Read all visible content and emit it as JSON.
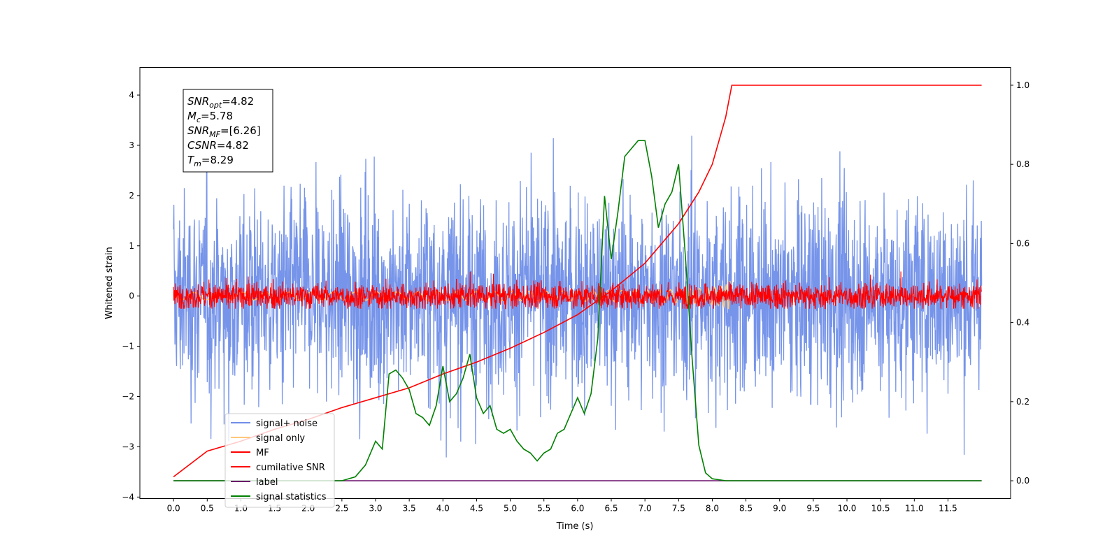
{
  "chart_data": {
    "type": "line",
    "xlabel": "Time (s)",
    "ylabel": "Whitened strain",
    "xlim": [
      -0.5,
      12.43
    ],
    "ylim": [
      -4.03,
      4.55
    ],
    "y2lim": [
      -0.045,
      1.045
    ],
    "x_ticks": [
      "0.0",
      "0.5",
      "1.0",
      "1.5",
      "2.0",
      "2.5",
      "3.0",
      "3.5",
      "4.0",
      "4.5",
      "5.0",
      "5.5",
      "6.0",
      "6.5",
      "7.0",
      "7.5",
      "8.0",
      "8.5",
      "9.0",
      "9.5",
      "10.0",
      "10.5",
      "11.0",
      "11.5"
    ],
    "y_ticks": [
      "−4",
      "−3",
      "−2",
      "−1",
      "0",
      "1",
      "2",
      "3",
      "4"
    ],
    "y2_ticks": [
      "0.0",
      "0.2",
      "0.4",
      "0.6",
      "0.8",
      "1.0"
    ],
    "grid": false,
    "legend_position": "lower-left",
    "textbox": [
      "SNRopt=4.82",
      "Mc=5.78",
      "SNRMF=[6.26]",
      "CSNR=4.82",
      "Tm=8.29"
    ],
    "textbox_parts": [
      {
        "sym": "SNR",
        "sub": "opt",
        "val": "=4.82"
      },
      {
        "sym": "M",
        "sub": "c",
        "val": "=5.78"
      },
      {
        "sym": "SNR",
        "sub": "MF",
        "val": "=[6.26]"
      },
      {
        "sym": "CSNR",
        "sub": "",
        "val": "=4.82"
      },
      {
        "sym": "T",
        "sub": "m",
        "val": "=8.29"
      }
    ],
    "series": [
      {
        "name": "signal+ noise",
        "color": "#6f8ee8",
        "kind": "noise",
        "axis": "left",
        "x_range": [
          0,
          12
        ],
        "mean": 0,
        "std": 1,
        "min": -3.5,
        "max": 4.15
      },
      {
        "name": "signal only",
        "color": "#ffc87a",
        "kind": "chirp",
        "axis": "left",
        "x_range": [
          0,
          8.29
        ],
        "peak_time": 8.29,
        "peak_amplitude": 0.55
      },
      {
        "name": "MF",
        "color": "#ff0000",
        "kind": "noise",
        "axis": "left",
        "x_range": [
          0,
          12
        ],
        "mean": 0,
        "std": 0.13,
        "min": -0.25,
        "max": 0.55
      },
      {
        "name": "cumilative SNR",
        "color": "#ff0000",
        "kind": "curve",
        "axis": "right",
        "x": [
          0,
          0.5,
          1,
          1.5,
          2,
          2.5,
          3,
          3.5,
          4,
          4.5,
          5,
          5.5,
          6,
          6.5,
          7,
          7.5,
          7.8,
          8.0,
          8.1,
          8.2,
          8.29,
          8.3,
          9,
          10,
          11,
          12
        ],
        "values": [
          0.01,
          0.075,
          0.1,
          0.13,
          0.155,
          0.185,
          0.21,
          0.235,
          0.27,
          0.3,
          0.335,
          0.375,
          0.42,
          0.48,
          0.55,
          0.65,
          0.73,
          0.8,
          0.86,
          0.92,
          1.0,
          1.0,
          1.0,
          1.0,
          1.0,
          1.0
        ]
      },
      {
        "name": "label",
        "color": "#6a0f6a",
        "kind": "curve",
        "axis": "right",
        "x": [
          0,
          12
        ],
        "values": [
          0,
          0
        ]
      },
      {
        "name": "signal statistics",
        "color": "#008000",
        "kind": "curve",
        "axis": "right",
        "x": [
          0,
          0.5,
          1,
          1.5,
          2,
          2.5,
          2.7,
          2.85,
          3.0,
          3.1,
          3.2,
          3.3,
          3.4,
          3.5,
          3.6,
          3.7,
          3.8,
          3.9,
          4.0,
          4.1,
          4.2,
          4.3,
          4.4,
          4.5,
          4.6,
          4.7,
          4.8,
          4.9,
          5.0,
          5.1,
          5.2,
          5.3,
          5.4,
          5.5,
          5.6,
          5.7,
          5.8,
          5.9,
          6.0,
          6.1,
          6.2,
          6.3,
          6.4,
          6.5,
          6.6,
          6.7,
          6.8,
          6.9,
          7.0,
          7.1,
          7.2,
          7.3,
          7.4,
          7.5,
          7.6,
          7.7,
          7.8,
          7.9,
          8.0,
          8.2,
          9,
          10,
          11,
          12
        ],
        "values": [
          0.0,
          0.0,
          0.0,
          0.0,
          0.0,
          0.0,
          0.01,
          0.04,
          0.1,
          0.08,
          0.27,
          0.28,
          0.26,
          0.23,
          0.17,
          0.16,
          0.14,
          0.19,
          0.29,
          0.2,
          0.22,
          0.26,
          0.32,
          0.21,
          0.17,
          0.19,
          0.13,
          0.12,
          0.13,
          0.1,
          0.08,
          0.07,
          0.05,
          0.07,
          0.08,
          0.12,
          0.13,
          0.17,
          0.21,
          0.17,
          0.22,
          0.36,
          0.72,
          0.56,
          0.68,
          0.82,
          0.84,
          0.86,
          0.86,
          0.77,
          0.64,
          0.7,
          0.73,
          0.8,
          0.57,
          0.31,
          0.09,
          0.02,
          0.005,
          0.0,
          0.0,
          0.0,
          0.0,
          0.0
        ]
      }
    ]
  }
}
